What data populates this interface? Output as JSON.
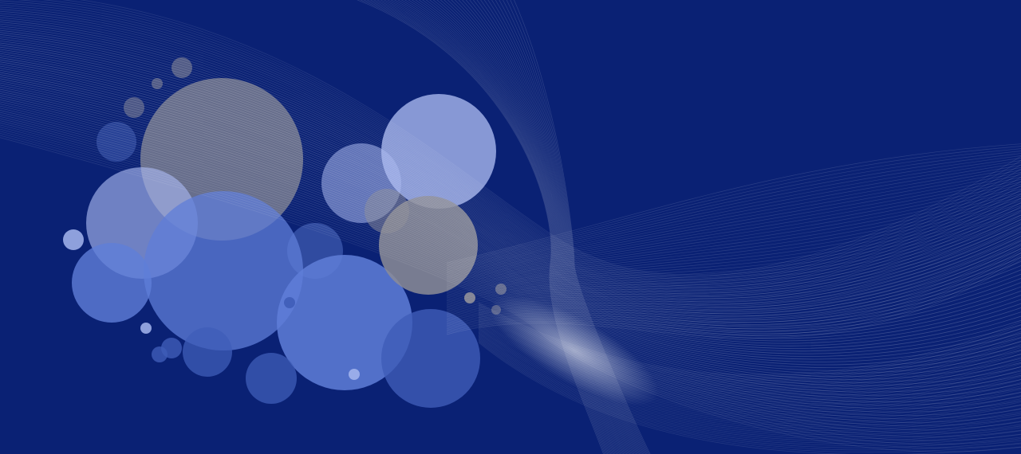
{
  "scene": {
    "background": "#0a2174",
    "wave_color": "#ffffff",
    "bubble_colors": {
      "light": "#a6b6ee",
      "mid": "#5f7ed8",
      "dark": "#3f5db8",
      "gray": "#8c8c96",
      "deep": "#2d4aa8"
    }
  }
}
